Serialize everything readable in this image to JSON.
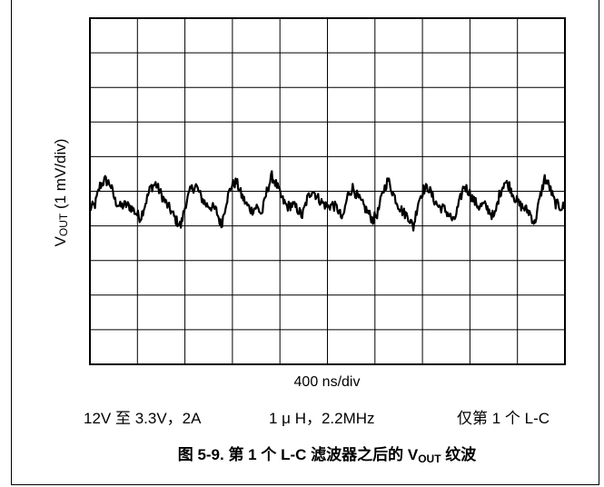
{
  "chart_data": {
    "type": "line",
    "title": "",
    "xlabel": "400 ns/div",
    "ylabel_main": "V",
    "ylabel_sub": "OUT",
    "ylabel_rest": " (1 mV/div)",
    "x_divisions": 10,
    "y_divisions": 10,
    "grid": true,
    "series": [
      {
        "values": [
          0,
          0.2,
          1.2,
          1.5,
          1.3,
          0.4,
          0.1,
          0.2,
          0.1,
          -0.2,
          -0.5,
          0.3,
          1.1,
          1.3,
          0.8,
          0.3,
          -0.1,
          -0.6,
          -0.9,
          0.3,
          1.0,
          1.2,
          0.6,
          0.2,
          0.1,
          -0.1,
          -0.9,
          0.4,
          1.2,
          1.4,
          0.7,
          0.2,
          -0.1,
          0.1,
          -0.3,
          0.9,
          1.7,
          1.2,
          0.5,
          0.1,
          0.2,
          0.0,
          -0.4,
          0.5,
          1.0,
          0.6,
          0.3,
          0.1,
          0.2,
          0.0,
          -0.6,
          0.7,
          1.1,
          0.6,
          0.2,
          -0.2,
          -0.6,
          -0.2,
          0.9,
          1.5,
          0.8,
          0.2,
          -0.2,
          -0.4,
          -1.0,
          0.4,
          1.0,
          1.1,
          0.5,
          0.1,
          0.0,
          -0.3,
          -0.7,
          0.2,
          1.2,
          0.9,
          0.4,
          0.1,
          0.2,
          -0.1,
          -0.5,
          0.7,
          1.4,
          1.2,
          0.6,
          0.2,
          0.0,
          -0.2,
          -0.8,
          0.5,
          1.6,
          1.1,
          0.3,
          0.1,
          0.1
        ]
      }
    ]
  },
  "conditions": {
    "c1": "12V 至 3.3V，2A",
    "c2": "1 μ H，2.2MHz",
    "c3": "仅第 1 个 L-C"
  },
  "caption": {
    "prefix": "图 5-9. 第 1 个 L-C 滤波器之后的 V",
    "sub": "OUT",
    "suffix": " 纹波"
  }
}
